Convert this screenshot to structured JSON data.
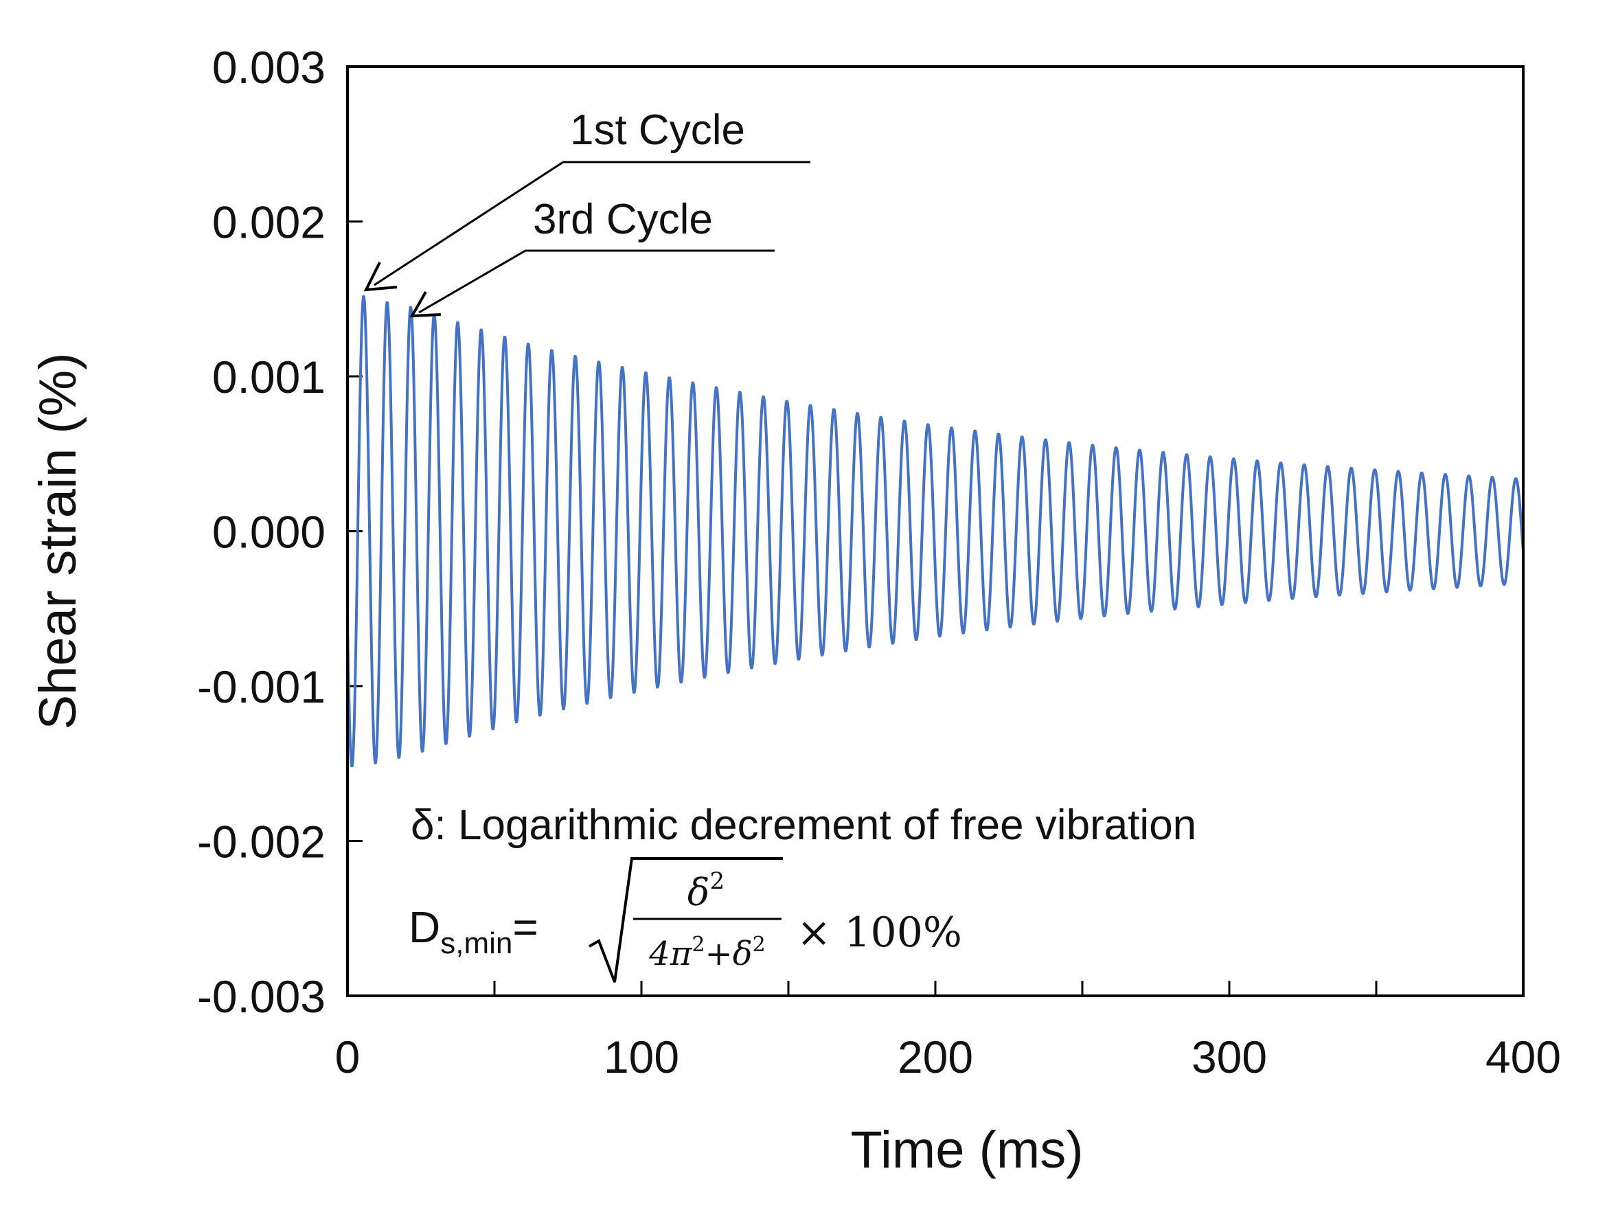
{
  "chart_data": {
    "type": "line",
    "title": "",
    "xlabel": "Time (ms)",
    "ylabel": "Shear strain (%)",
    "xlim": [
      0,
      400
    ],
    "ylim": [
      -0.003,
      0.003
    ],
    "xticks": [
      0,
      100,
      200,
      300,
      400
    ],
    "xtick_labels": [
      "0",
      "100",
      "200",
      "300",
      "400"
    ],
    "xminor_ticks": [
      50,
      150,
      250,
      350
    ],
    "yticks": [
      0.003,
      0.002,
      0.001,
      0.0,
      -0.001,
      -0.002,
      -0.003
    ],
    "ytick_labels": [
      "0.003",
      "0.002",
      "0.001",
      "0.000",
      "-0.001",
      "-0.002",
      "-0.003"
    ],
    "grid": false,
    "series": [
      {
        "name": "Shear strain",
        "color": "#4472C4",
        "model": "damped sinusoid (free vibration)",
        "initial_amplitude": 0.00152,
        "period_ms": 8.0,
        "first_peak_ms": 5.5,
        "peak_times_ms": [
          5.5,
          13.5,
          21.5,
          29.5,
          69.5,
          133.5,
          197.5,
          261.5,
          325.5,
          397.5
        ],
        "peak_values": [
          0.00152,
          0.00148,
          0.00145,
          0.0014,
          0.00117,
          0.0009,
          0.00069,
          0.00054,
          0.00043,
          0.00034
        ]
      }
    ],
    "annotations": [
      {
        "text": "1st Cycle",
        "points_to": [
          5.5,
          0.00152
        ]
      },
      {
        "text": "3rd Cycle",
        "points_to": [
          21.5,
          0.00145
        ]
      }
    ]
  },
  "notes": {
    "definition": "δ: Logarithmic decrement of free vibration",
    "formula_lhs_base": "D",
    "formula_lhs_sub": "s,min",
    "formula_eq": "=",
    "formula_num": "δ",
    "formula_num_exp": "2",
    "formula_den_a": "4π",
    "formula_den_exp1": "2",
    "formula_den_plus": "+δ",
    "formula_den_exp2": "2",
    "formula_times": "× 100%"
  }
}
